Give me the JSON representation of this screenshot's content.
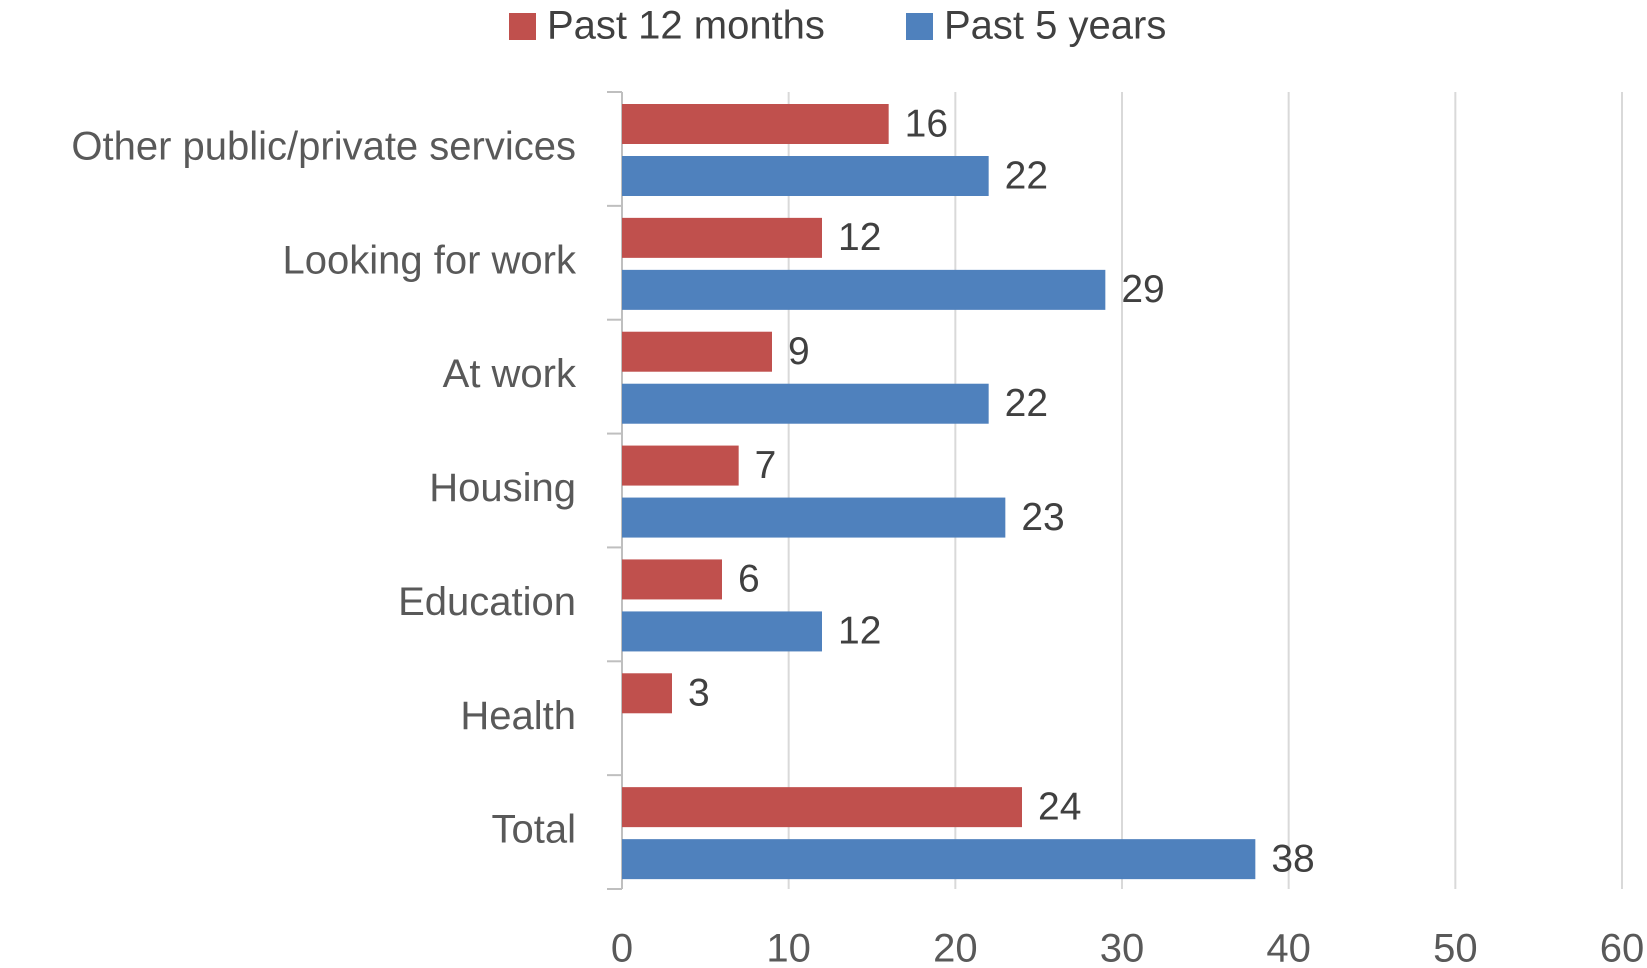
{
  "chart_data": {
    "type": "bar",
    "orientation": "horizontal",
    "categories": [
      "Other public/private services",
      "Looking for work",
      "At work",
      "Housing",
      "Education",
      "Health",
      "Total"
    ],
    "series": [
      {
        "name": "Past 12 months",
        "color": "#c0504d",
        "values": [
          16,
          12,
          9,
          7,
          6,
          3,
          24
        ]
      },
      {
        "name": "Past 5 years",
        "color": "#4f81bd",
        "values": [
          22,
          29,
          22,
          23,
          12,
          null,
          38
        ]
      }
    ],
    "xlim": [
      0,
      60
    ],
    "xticks": [
      0,
      10,
      20,
      30,
      40,
      50,
      60
    ],
    "grid": true,
    "legend": "top"
  }
}
